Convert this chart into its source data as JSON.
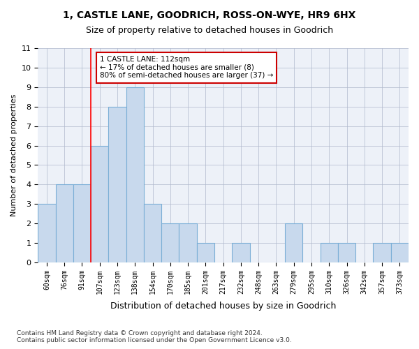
{
  "title": "1, CASTLE LANE, GOODRICH, ROSS-ON-WYE, HR9 6HX",
  "subtitle": "Size of property relative to detached houses in Goodrich",
  "xlabel": "Distribution of detached houses by size in Goodrich",
  "ylabel": "Number of detached properties",
  "bin_labels": [
    "60sqm",
    "76sqm",
    "91sqm",
    "107sqm",
    "123sqm",
    "138sqm",
    "154sqm",
    "170sqm",
    "185sqm",
    "201sqm",
    "217sqm",
    "232sqm",
    "248sqm",
    "263sqm",
    "279sqm",
    "295sqm",
    "310sqm",
    "326sqm",
    "342sqm",
    "357sqm",
    "373sqm"
  ],
  "bar_values": [
    3,
    4,
    4,
    6,
    8,
    9,
    3,
    2,
    2,
    1,
    0,
    1,
    0,
    0,
    2,
    0,
    1,
    1,
    0,
    1,
    1
  ],
  "bar_color": "#c8d9ed",
  "bar_edgecolor": "#7aaed6",
  "ylim": [
    0,
    11
  ],
  "red_line_x": 2.5,
  "annotation_text": "1 CASTLE LANE: 112sqm\n← 17% of detached houses are smaller (8)\n80% of semi-detached houses are larger (37) →",
  "annotation_box_color": "#ffffff",
  "annotation_box_edgecolor": "#cc0000",
  "footer_text": "Contains HM Land Registry data © Crown copyright and database right 2024.\nContains public sector information licensed under the Open Government Licence v3.0.",
  "background_color": "#edf1f8",
  "grid_color": "#b0b8cc"
}
